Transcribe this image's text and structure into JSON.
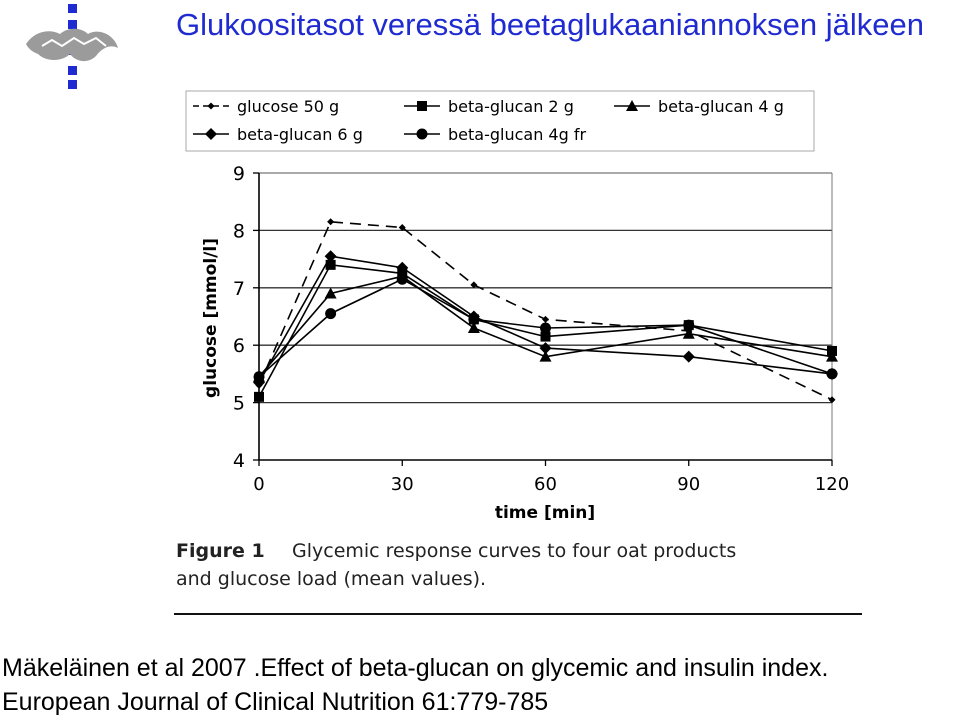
{
  "slide": {
    "title": "Glukoositasot veressä beetaglukaaniannoksen jälkeen",
    "citation_line1": "Mäkeläinen et al 2007 .Effect of beta-glucan on glycemic and insulin index.",
    "citation_line2": "European Journal of Clinical Nutrition 61:779-785",
    "accent_color": "#1f2bd0",
    "logo_icon": "university-logo-icon"
  },
  "chart_data": {
    "type": "line",
    "title": "",
    "xlabel": "time [min]",
    "ylabel": "glucose [mmol/l]",
    "x": [
      0,
      15,
      30,
      45,
      60,
      90,
      120
    ],
    "xticks": [
      0,
      30,
      60,
      90,
      120
    ],
    "yticks": [
      4,
      5,
      6,
      7,
      8,
      9
    ],
    "xlim": [
      0,
      120
    ],
    "ylim": [
      4,
      9
    ],
    "grid": "horizontal",
    "legend_position": "top",
    "caption_label": "Figure 1",
    "caption_text": "Glycemic response curves to four oat products and glucose load (mean values).",
    "series": [
      {
        "name": "glucose 50 g",
        "marker": "small-diamond",
        "dash": "dashed",
        "values": [
          5.3,
          8.15,
          8.05,
          7.05,
          6.45,
          6.25,
          5.05
        ]
      },
      {
        "name": "beta-glucan 2 g",
        "marker": "square",
        "dash": "solid",
        "values": [
          5.1,
          7.4,
          7.25,
          6.45,
          6.15,
          6.35,
          5.9
        ]
      },
      {
        "name": "beta-glucan 4 g",
        "marker": "triangle",
        "dash": "solid",
        "values": [
          5.45,
          6.9,
          7.2,
          6.3,
          5.8,
          6.2,
          5.8
        ]
      },
      {
        "name": "beta-glucan 6 g",
        "marker": "diamond",
        "dash": "solid",
        "values": [
          5.35,
          7.55,
          7.35,
          6.5,
          5.95,
          5.8,
          5.5
        ]
      },
      {
        "name": "beta-glucan 4g fr",
        "marker": "circle",
        "dash": "solid",
        "values": [
          5.45,
          6.55,
          7.15,
          6.45,
          6.3,
          6.35,
          5.5
        ]
      }
    ]
  }
}
